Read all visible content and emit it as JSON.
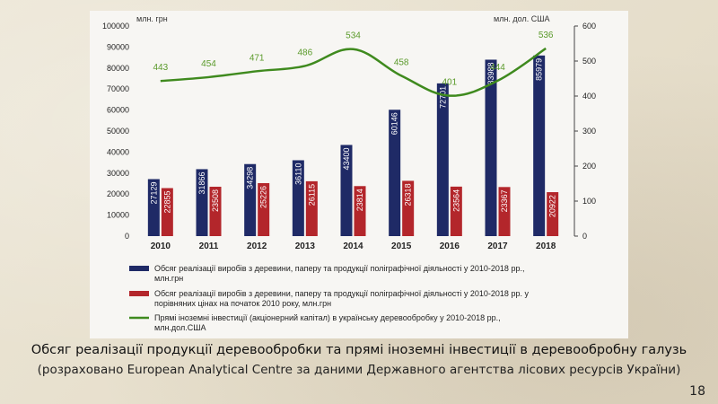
{
  "slide": {
    "caption_title": "Обсяг реалізації продукції деревообробки та прямі іноземні інвестиції в деревообробну галузь",
    "caption_source": "(розраховано European Analytical Centre за даними Державного агентства лісових ресурсів України)",
    "page_number": "18"
  },
  "chart_data": {
    "type": "bar",
    "categories": [
      "2010",
      "2011",
      "2012",
      "2013",
      "2014",
      "2015",
      "2016",
      "2017",
      "2018"
    ],
    "left_axis": {
      "unit": "млн. грн",
      "ylim": [
        0,
        100000
      ],
      "ticks": [
        "0",
        "10000",
        "20000",
        "30000",
        "40000",
        "50000",
        "60000",
        "70000",
        "80000",
        "90000",
        "100000"
      ]
    },
    "right_axis": {
      "unit": "млн. дол. США",
      "ylim": [
        0,
        600
      ],
      "ticks": [
        "0",
        "100",
        "200",
        "300",
        "400",
        "500",
        "600"
      ]
    },
    "series": [
      {
        "name": "Обсяг реалізації виробів з деревини, паперу та продукції поліграфічної діяльності у 2010-2018 рр., млн.грн",
        "type": "bar",
        "axis": "left",
        "color": "#1f2a66",
        "values": [
          27129,
          31866,
          34298,
          36110,
          43400,
          60146,
          72701,
          83988,
          85979
        ],
        "labels": [
          "27129",
          "31866",
          "34298",
          "36110",
          "43400",
          "60146",
          "72701",
          "83988",
          "85979"
        ]
      },
      {
        "name": "Обсяг реалізації виробів з деревини, паперу та продукції поліграфічної діяльності у 2010-2018 рр. у порівняних цінах на початок 2010 року, млн.грн",
        "type": "bar",
        "axis": "left",
        "color": "#b3262b",
        "values": [
          22855,
          23508,
          25226,
          26115,
          23814,
          26318,
          23564,
          23367,
          20922
        ],
        "labels": [
          "22855",
          "23508",
          "25226",
          "26115",
          "23814",
          "26318",
          "23564",
          "23367",
          "20922"
        ]
      },
      {
        "name": "Прямі іноземні інвестиції (акціонерний капітал) в українську деревообробку у 2010-2018 рр., млн.дол.США",
        "type": "line",
        "axis": "right",
        "color": "#3f8a1e",
        "values": [
          443,
          454,
          471,
          486,
          534,
          458,
          401,
          444,
          536
        ],
        "labels": [
          "443",
          "454",
          "471",
          "486",
          "534",
          "458",
          "401",
          "444",
          "536"
        ]
      }
    ],
    "legend": {
      "placement": "bottom",
      "entries": [
        [
          "Обсяг реалізації виробів з деревини, паперу та продукції поліграфічної діяльності у 2010-2018 рр.,",
          "млн.грн"
        ],
        [
          "Обсяг реалізації виробів з деревини, паперу та продукції поліграфічної діяльності у 2010-2018 рр. у",
          "порівняних цінах на початок 2010 року, млн.грн"
        ],
        [
          "Прямі іноземні інвестиції (акціонерний капітал) в українську деревообробку у 2010-2018 рр.,",
          "млн.дол.США"
        ]
      ]
    },
    "grid": false
  }
}
